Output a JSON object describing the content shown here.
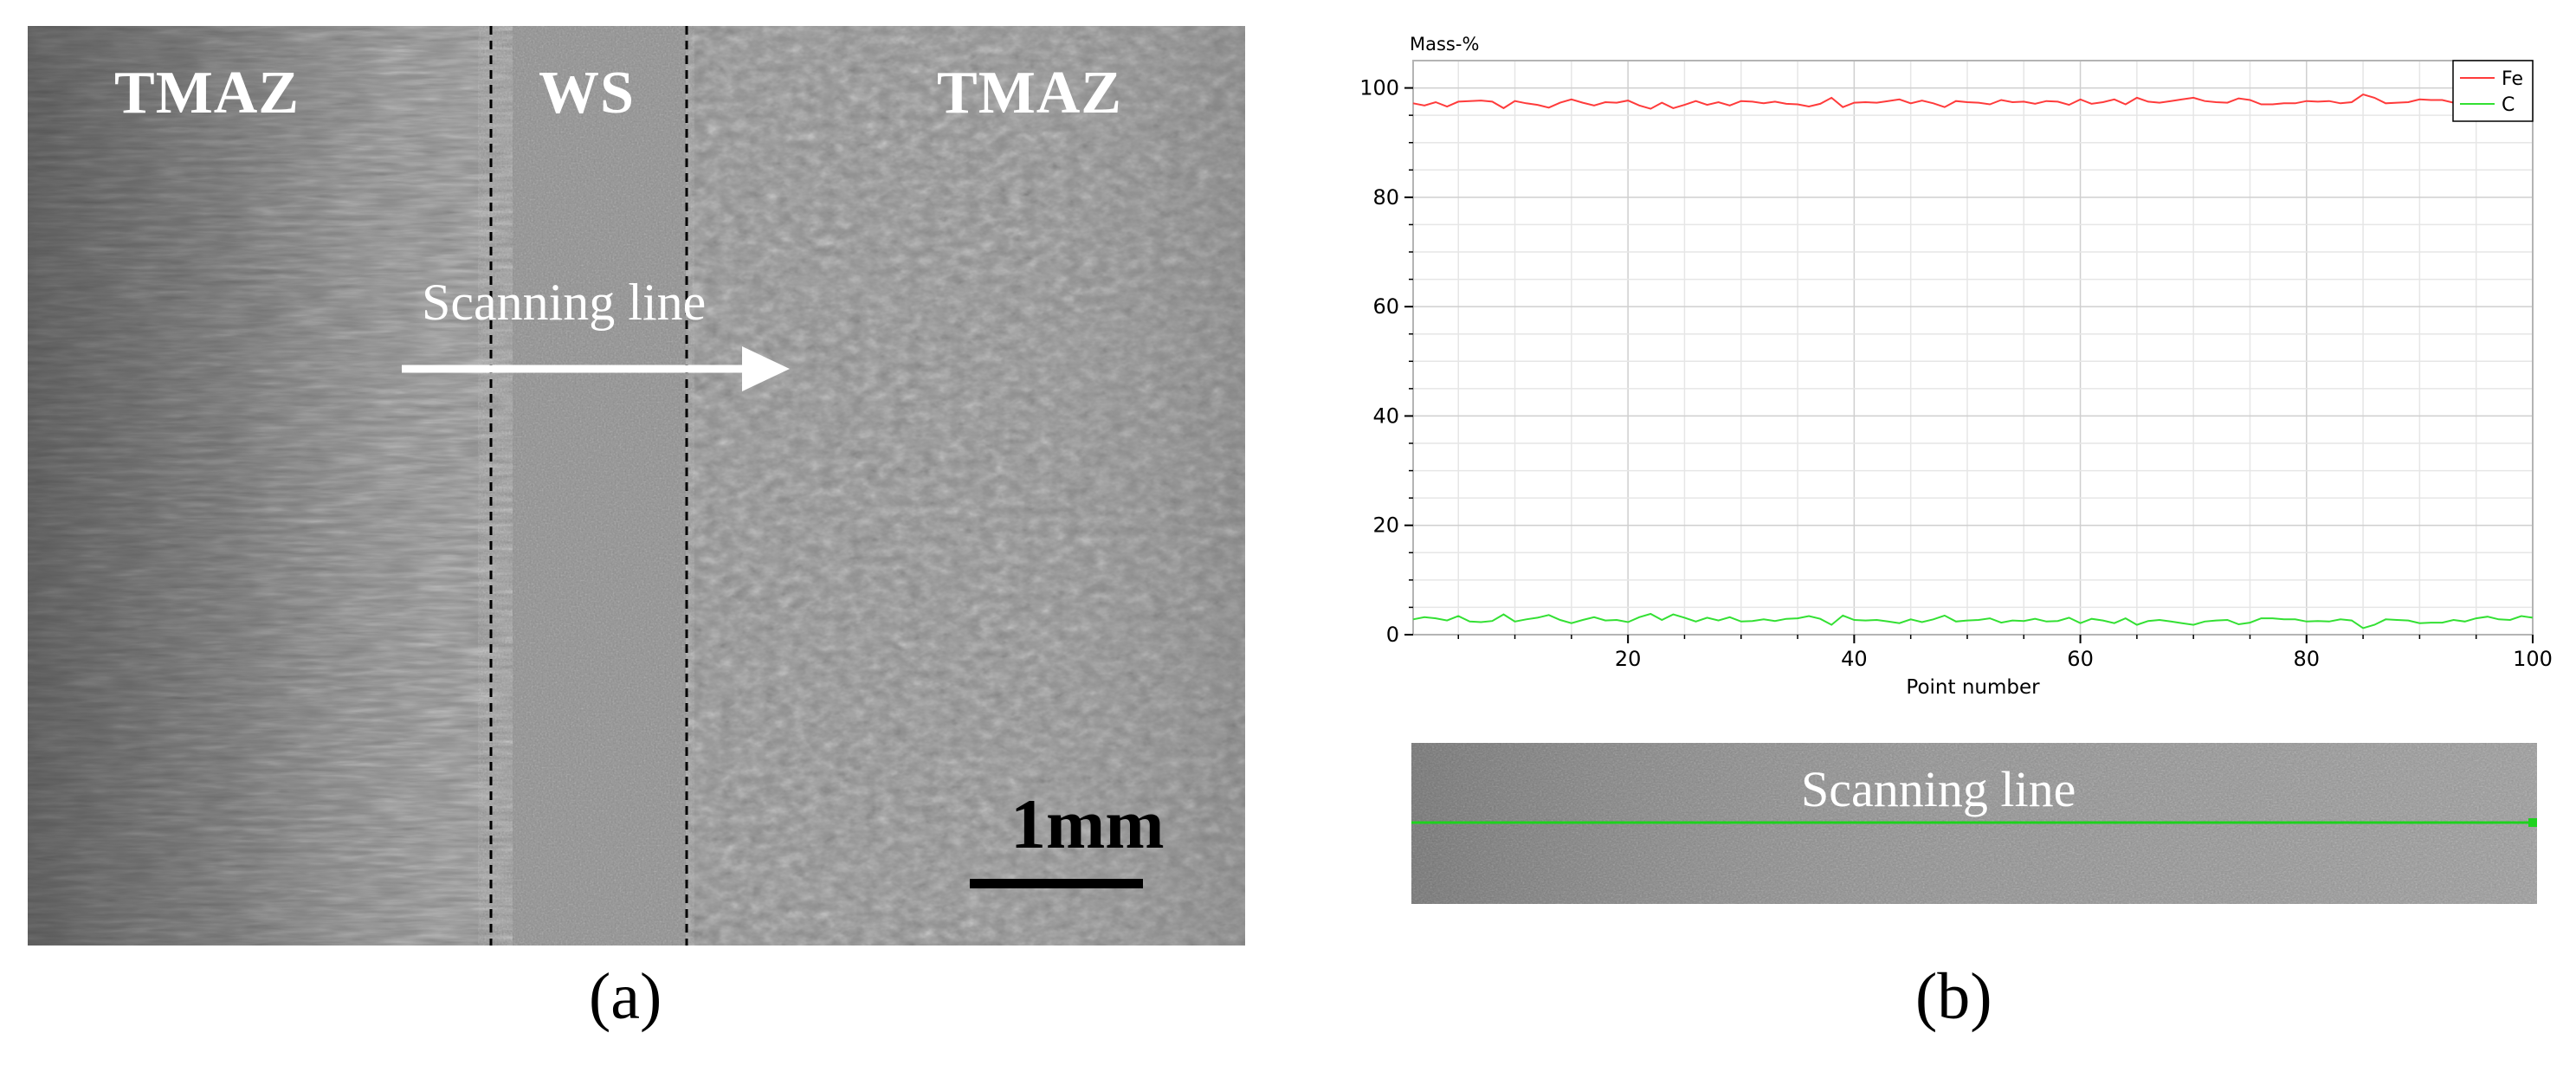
{
  "panel_a": {
    "zone_left": "TMAZ",
    "zone_center": "WS",
    "zone_right": "TMAZ",
    "scan_label": "Scanning line",
    "scale_bar_label": "1mm",
    "caption": "(a)"
  },
  "panel_b": {
    "scan_label": "Scanning line",
    "caption": "(b)"
  },
  "chart_data": {
    "type": "line",
    "ylabel": "Mass-%",
    "xlabel": "Point number",
    "xlim": [
      1,
      100
    ],
    "ylim": [
      0,
      105
    ],
    "xticks": [
      20,
      40,
      60,
      80,
      100
    ],
    "yticks": [
      0,
      20,
      40,
      60,
      80,
      100
    ],
    "grid": true,
    "legend_position": "top-right",
    "series": [
      {
        "name": "Fe",
        "color": "#ff3b3b",
        "values": [
          97.2,
          96.8,
          97.4,
          96.6,
          97.5,
          97.6,
          97.7,
          97.5,
          96.3,
          97.6,
          97.2,
          96.9,
          96.4,
          97.3,
          97.9,
          97.3,
          96.8,
          97.4,
          97.3,
          97.7,
          96.8,
          96.2,
          97.3,
          96.3,
          96.9,
          97.6,
          96.9,
          97.4,
          96.8,
          97.6,
          97.5,
          97.2,
          97.5,
          97.1,
          97.0,
          96.6,
          97.1,
          98.2,
          96.5,
          97.3,
          97.4,
          97.3,
          97.6,
          97.9,
          97.2,
          97.7,
          97.2,
          96.5,
          97.6,
          97.4,
          97.3,
          97.0,
          97.8,
          97.4,
          97.5,
          97.1,
          97.6,
          97.5,
          96.9,
          97.9,
          97.1,
          97.4,
          97.9,
          97.0,
          98.2,
          97.5,
          97.3,
          97.6,
          97.9,
          98.2,
          97.6,
          97.4,
          97.3,
          98.1,
          97.8,
          97.0,
          97.0,
          97.2,
          97.2,
          97.6,
          97.5,
          97.6,
          97.2,
          97.4,
          98.8,
          98.2,
          97.2,
          97.3,
          97.4,
          97.9,
          97.8,
          97.8,
          97.3,
          97.6,
          97.0,
          96.7,
          97.2,
          97.3,
          96.6,
          96.9
        ]
      },
      {
        "name": "C",
        "color": "#33e033",
        "values": [
          2.8,
          3.2,
          3.0,
          2.6,
          3.4,
          2.4,
          2.3,
          2.5,
          3.7,
          2.4,
          2.8,
          3.1,
          3.6,
          2.7,
          2.1,
          2.7,
          3.2,
          2.6,
          2.7,
          2.3,
          3.2,
          3.8,
          2.7,
          3.7,
          3.1,
          2.4,
          3.1,
          2.6,
          3.2,
          2.4,
          2.5,
          2.8,
          2.5,
          2.9,
          3.0,
          3.4,
          2.9,
          1.8,
          3.5,
          2.7,
          2.6,
          2.7,
          2.4,
          2.1,
          2.8,
          2.3,
          2.8,
          3.5,
          2.4,
          2.6,
          2.7,
          3.0,
          2.2,
          2.6,
          2.5,
          2.9,
          2.4,
          2.5,
          3.1,
          2.1,
          2.9,
          2.6,
          2.1,
          3.0,
          1.8,
          2.5,
          2.7,
          2.4,
          2.1,
          1.8,
          2.4,
          2.6,
          2.7,
          1.9,
          2.2,
          3.0,
          3.0,
          2.8,
          2.8,
          2.4,
          2.5,
          2.4,
          2.8,
          2.6,
          1.2,
          1.8,
          2.8,
          2.7,
          2.6,
          2.1,
          2.2,
          2.2,
          2.7,
          2.4,
          3.0,
          3.3,
          2.8,
          2.7,
          3.4,
          3.1
        ]
      }
    ]
  }
}
